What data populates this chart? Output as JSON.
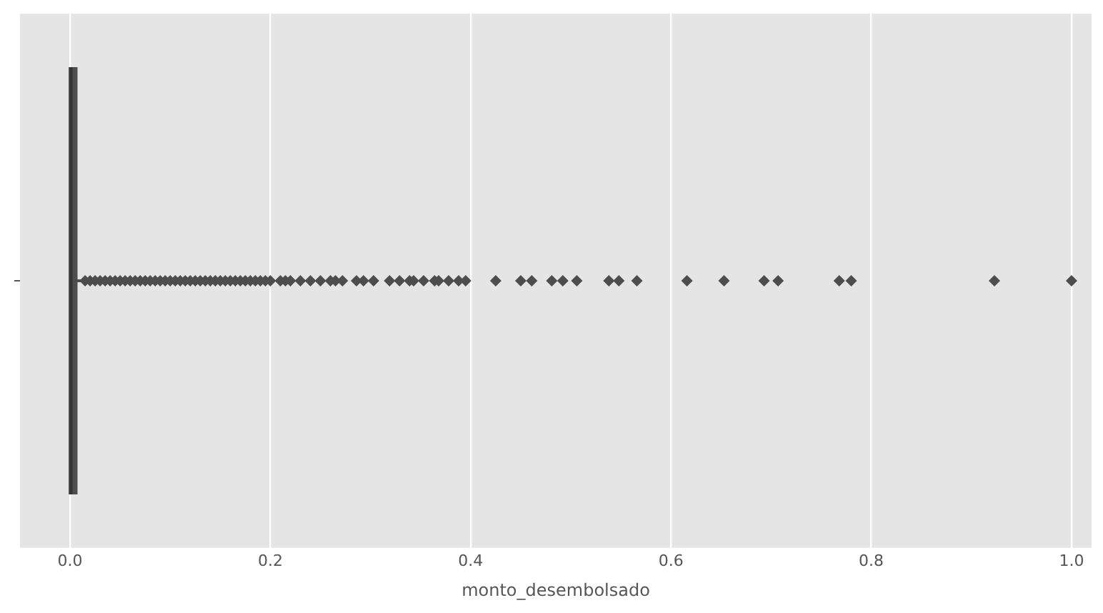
{
  "chart_data": {
    "type": "box",
    "orientation": "horizontal",
    "xlabel": "monto_desembolsado",
    "categories": [
      null
    ],
    "color": "#4d4d4d",
    "marker": "diamond",
    "grid": "x",
    "tick_labels": "x",
    "xlim": [
      -0.05,
      1.02
    ],
    "xticks": [
      {
        "value": 0,
        "label": "0.0"
      },
      0.2,
      0.4,
      0.6,
      0.8,
      {
        "value": 1,
        "label": "1.0"
      }
    ],
    "boxes": [
      {
        "low": 0,
        "q1": 0.0,
        "median": 0.001,
        "q3": 0.006,
        "high": 0.013,
        "outliers": [
          0.015,
          0.02,
          0.025,
          0.03,
          0.035,
          0.04,
          0.045,
          0.05,
          0.055,
          0.06,
          0.065,
          0.07,
          0.075,
          0.08,
          0.085,
          0.09,
          0.095,
          0.1,
          0.105,
          0.11,
          0.115,
          0.12,
          0.125,
          0.13,
          0.135,
          0.14,
          0.145,
          0.15,
          0.155,
          0.16,
          0.165,
          0.17,
          0.175,
          0.18,
          0.185,
          0.19,
          0.195,
          0.2,
          0.21,
          0.215,
          0.22,
          0.23,
          0.24,
          0.25,
          0.26,
          0.265,
          0.272,
          0.286,
          0.293,
          0.303,
          0.319,
          0.329,
          0.339,
          0.343,
          0.353,
          0.364,
          0.368,
          0.378,
          0.388,
          0.395,
          0.425,
          0.45,
          0.461,
          0.481,
          0.492,
          0.506,
          0.538,
          0.548,
          0.566,
          0.616,
          0.653,
          0.693,
          0.707,
          0.768,
          0.78,
          0.923,
          1.0
        ]
      }
    ]
  }
}
